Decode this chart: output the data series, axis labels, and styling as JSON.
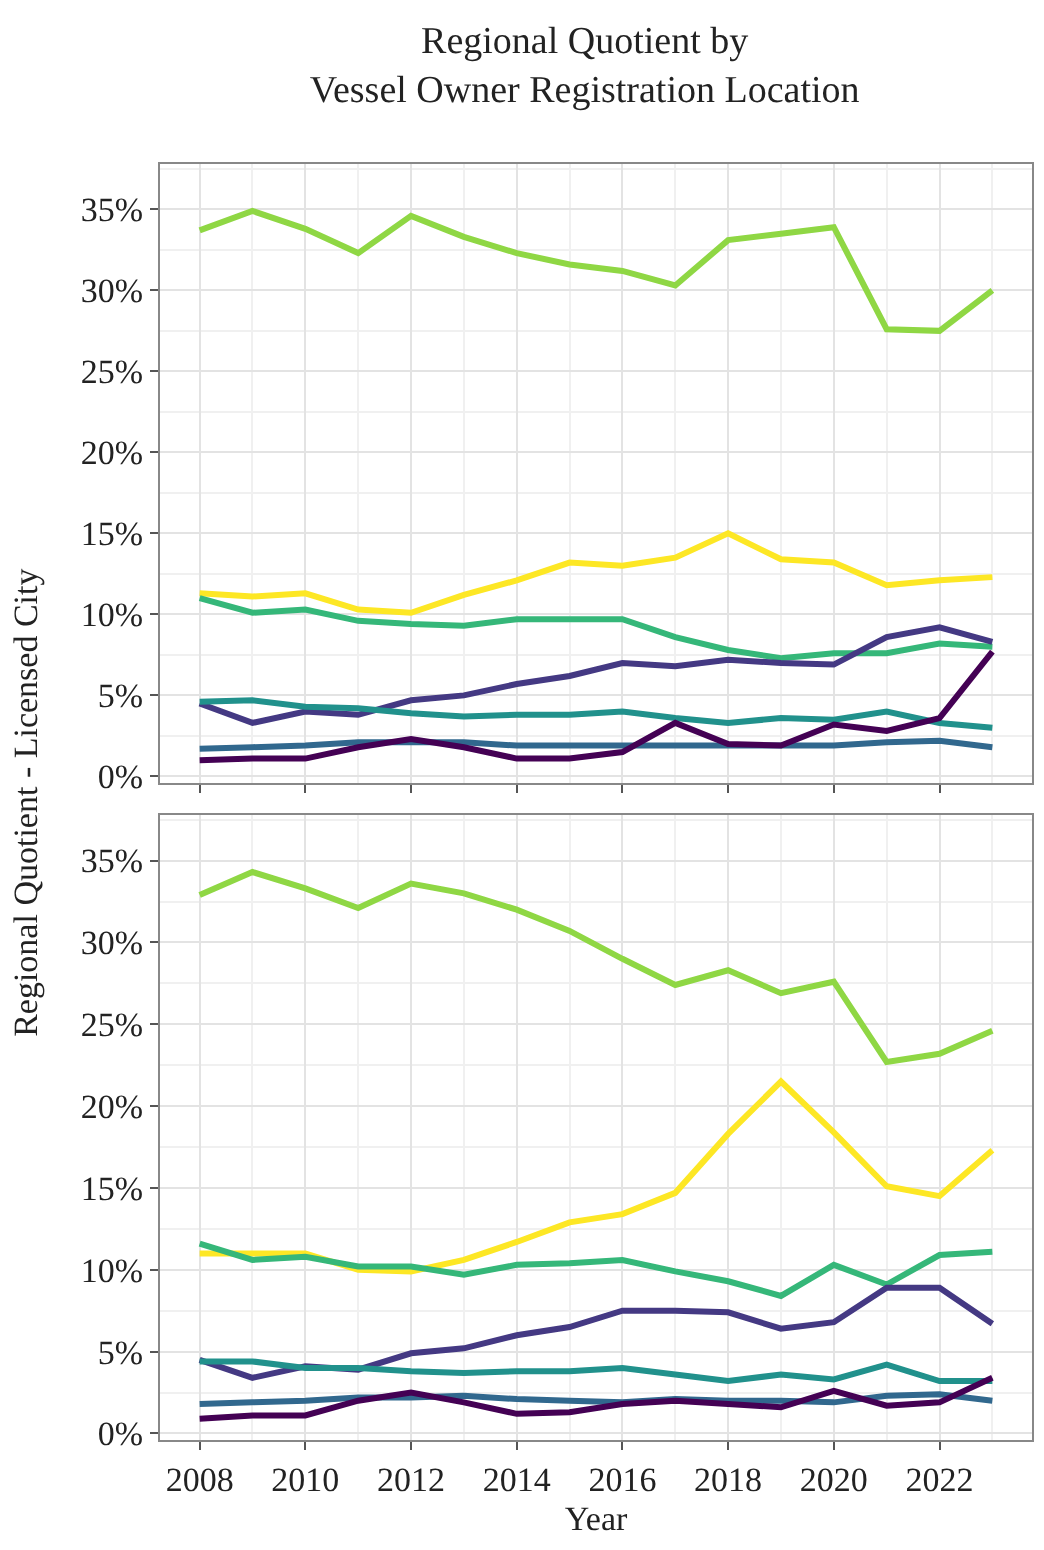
{
  "chart_data": [
    {
      "type": "line",
      "title": "Regional Quotient by\nVessel Owner Registration Location",
      "ylabel": "Regional Quotient - Licensed City",
      "x": [
        2008,
        2009,
        2010,
        2011,
        2012,
        2013,
        2014,
        2015,
        2016,
        2017,
        2018,
        2019,
        2020,
        2021,
        2022,
        2023
      ],
      "xlim": [
        2007.25,
        2023.75
      ],
      "xticks": [
        2008,
        2010,
        2012,
        2014,
        2016,
        2018,
        2020,
        2022
      ],
      "ylim": [
        -0.4,
        37.8
      ],
      "yticks": [
        {
          "value": 0,
          "label": "0%"
        },
        {
          "value": 5,
          "label": "5%"
        },
        {
          "value": 10,
          "label": "10%"
        },
        {
          "value": 15,
          "label": "15%"
        },
        {
          "value": 20,
          "label": "20%"
        },
        {
          "value": 25,
          "label": "25%"
        },
        {
          "value": 30,
          "label": "30%"
        },
        {
          "value": 35,
          "label": "35%"
        }
      ],
      "tick_labels": "y",
      "grid": true,
      "line_style": "solid",
      "series": [
        {
          "color": "#8fd744",
          "values": [
            33.7,
            34.9,
            33.8,
            32.3,
            34.6,
            33.3,
            32.3,
            31.6,
            31.2,
            30.3,
            33.1,
            33.5,
            33.9,
            27.6,
            27.5,
            30.0
          ]
        },
        {
          "color": "#fde725",
          "values": [
            11.3,
            11.1,
            11.3,
            10.3,
            10.1,
            11.2,
            12.1,
            13.2,
            13.0,
            13.5,
            15.0,
            13.4,
            13.2,
            11.8,
            12.1,
            12.3
          ]
        },
        {
          "color": "#35b779",
          "values": [
            11.0,
            10.1,
            10.3,
            9.6,
            9.4,
            9.3,
            9.7,
            9.7,
            9.7,
            8.6,
            7.8,
            7.3,
            7.6,
            7.6,
            8.2,
            8.0
          ]
        },
        {
          "color": "#443983",
          "values": [
            4.5,
            3.3,
            4.0,
            3.8,
            4.7,
            5.0,
            5.7,
            6.2,
            7.0,
            6.8,
            7.2,
            7.0,
            6.9,
            8.6,
            9.2,
            8.3
          ]
        },
        {
          "color": "#21918c",
          "values": [
            4.6,
            4.7,
            4.3,
            4.2,
            3.9,
            3.7,
            3.8,
            3.8,
            4.0,
            3.6,
            3.3,
            3.6,
            3.5,
            4.0,
            3.3,
            3.0
          ]
        },
        {
          "color": "#31688e",
          "values": [
            1.7,
            1.8,
            1.9,
            2.1,
            2.1,
            2.1,
            1.9,
            1.9,
            1.9,
            1.9,
            1.9,
            1.9,
            1.9,
            2.1,
            2.2,
            1.8
          ]
        },
        {
          "color": "#440154",
          "values": [
            1.0,
            1.1,
            1.1,
            1.8,
            2.3,
            1.8,
            1.1,
            1.1,
            1.5,
            3.3,
            2.0,
            1.9,
            3.2,
            2.8,
            3.6,
            7.7
          ]
        }
      ]
    },
    {
      "type": "line",
      "xlabel": "Year",
      "x": [
        2008,
        2009,
        2010,
        2011,
        2012,
        2013,
        2014,
        2015,
        2016,
        2017,
        2018,
        2019,
        2020,
        2021,
        2022,
        2023
      ],
      "xlim": [
        2007.25,
        2023.75
      ],
      "xticks": [
        2008,
        2010,
        2012,
        2014,
        2016,
        2018,
        2020,
        2022
      ],
      "ylim": [
        -0.4,
        37.8
      ],
      "yticks": [
        {
          "value": 0,
          "label": "0%"
        },
        {
          "value": 5,
          "label": "5%"
        },
        {
          "value": 10,
          "label": "10%"
        },
        {
          "value": 15,
          "label": "15%"
        },
        {
          "value": 20,
          "label": "20%"
        },
        {
          "value": 25,
          "label": "25%"
        },
        {
          "value": 30,
          "label": "30%"
        },
        {
          "value": 35,
          "label": "35%"
        }
      ],
      "grid": true,
      "line_style": "solid",
      "series": [
        {
          "color": "#8fd744",
          "values": [
            32.9,
            34.3,
            33.3,
            32.1,
            33.6,
            33.0,
            32.0,
            30.7,
            29.0,
            27.4,
            28.3,
            26.9,
            27.6,
            22.7,
            23.2,
            24.6
          ]
        },
        {
          "color": "#fde725",
          "values": [
            11.0,
            11.0,
            11.0,
            10.0,
            9.9,
            10.6,
            11.7,
            12.9,
            13.4,
            14.7,
            18.3,
            21.5,
            18.4,
            15.1,
            14.5,
            17.3
          ]
        },
        {
          "color": "#35b779",
          "values": [
            11.6,
            10.6,
            10.8,
            10.2,
            10.2,
            9.7,
            10.3,
            10.4,
            10.6,
            9.9,
            9.3,
            8.4,
            10.3,
            9.1,
            10.9,
            11.1
          ]
        },
        {
          "color": "#443983",
          "values": [
            4.5,
            3.4,
            4.1,
            3.9,
            4.9,
            5.2,
            6.0,
            6.5,
            7.5,
            7.5,
            7.4,
            6.4,
            6.8,
            8.9,
            8.9,
            6.7
          ]
        },
        {
          "color": "#21918c",
          "values": [
            4.4,
            4.4,
            4.0,
            4.0,
            3.8,
            3.7,
            3.8,
            3.8,
            4.0,
            3.6,
            3.2,
            3.6,
            3.3,
            4.2,
            3.2,
            3.2
          ]
        },
        {
          "color": "#31688e",
          "values": [
            1.8,
            1.9,
            2.0,
            2.2,
            2.2,
            2.3,
            2.1,
            2.0,
            1.9,
            2.1,
            2.0,
            2.0,
            1.9,
            2.3,
            2.4,
            2.0
          ]
        },
        {
          "color": "#440154",
          "values": [
            0.9,
            1.1,
            1.1,
            2.0,
            2.5,
            1.9,
            1.2,
            1.3,
            1.8,
            2.0,
            1.8,
            1.6,
            2.6,
            1.7,
            1.9,
            3.4
          ]
        }
      ]
    }
  ]
}
